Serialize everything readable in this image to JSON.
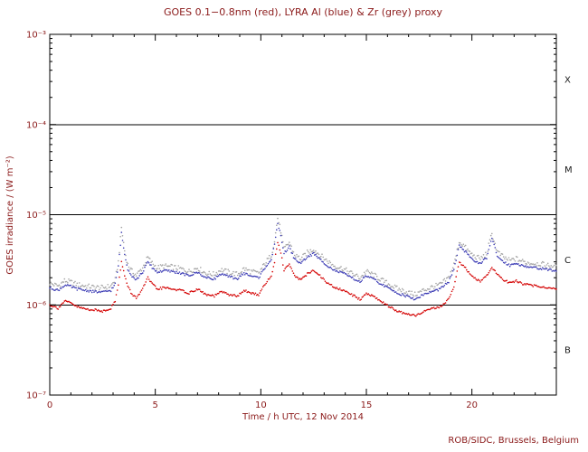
{
  "chart_data": {
    "type": "scatter",
    "title": "GOES 0.1−0.8nm (red), LYRA Al (blue) & Zr (grey) proxy",
    "xlabel": "Time / h UTC, 12 Nov 2014",
    "ylabel": "GOES irradiance / (W m⁻²)",
    "footer": "ROB/SIDC, Brussels, Belgium",
    "x_range": [
      0,
      24
    ],
    "y_range_exp": [
      -7,
      -3
    ],
    "x_major_ticks": [
      0,
      5,
      10,
      15,
      20
    ],
    "x_minor_step": 1,
    "y_ticks": [
      {
        "exp": -3,
        "label": "10⁻³"
      },
      {
        "exp": -4,
        "label": "10⁻⁴"
      },
      {
        "exp": -5,
        "label": "10⁻⁵"
      },
      {
        "exp": -6,
        "label": "10⁻⁶"
      },
      {
        "exp": -7,
        "label": "10⁻⁷"
      }
    ],
    "threshold_lines": [
      0.0001,
      1e-05,
      1e-06
    ],
    "flare_classes": [
      {
        "label": "X",
        "value": 0.000316
      },
      {
        "label": "M",
        "value": 3.16e-05
      },
      {
        "label": "C",
        "value": 3.16e-06
      },
      {
        "label": "B",
        "value": 3.16e-07
      }
    ],
    "grid": "off",
    "legend": "encoded-in-title",
    "colors": {
      "text": "#8b1a1a",
      "class_text": "#1a1a1a",
      "frame": "#000000",
      "goes_red": "#d40000",
      "lyra_al_blue": "#3a3ab4",
      "lyra_zr_grey": "#a3a3a3"
    },
    "series": [
      {
        "id": "goes",
        "name": "GOES 0.1−0.8nm",
        "color": "#d40000",
        "scatter": 0.012,
        "points": [
          [
            0.0,
            1e-06
          ],
          [
            0.4,
            9.2e-07
          ],
          [
            0.7,
            1.1e-06
          ],
          [
            1.0,
            1.05e-06
          ],
          [
            1.3,
            9.5e-07
          ],
          [
            1.7,
            9e-07
          ],
          [
            2.1,
            8.8e-07
          ],
          [
            2.5,
            8.5e-07
          ],
          [
            2.9,
            9.2e-07
          ],
          [
            3.1,
            1.1e-06
          ],
          [
            3.25,
            1.7e-06
          ],
          [
            3.4,
            3e-06
          ],
          [
            3.55,
            2.1e-06
          ],
          [
            3.7,
            1.6e-06
          ],
          [
            3.9,
            1.3e-06
          ],
          [
            4.1,
            1.2e-06
          ],
          [
            4.4,
            1.5e-06
          ],
          [
            4.65,
            2e-06
          ],
          [
            4.85,
            1.7e-06
          ],
          [
            5.1,
            1.5e-06
          ],
          [
            5.4,
            1.55e-06
          ],
          [
            5.8,
            1.5e-06
          ],
          [
            6.2,
            1.45e-06
          ],
          [
            6.6,
            1.35e-06
          ],
          [
            7.0,
            1.5e-06
          ],
          [
            7.4,
            1.3e-06
          ],
          [
            7.8,
            1.25e-06
          ],
          [
            8.1,
            1.4e-06
          ],
          [
            8.5,
            1.3e-06
          ],
          [
            8.9,
            1.25e-06
          ],
          [
            9.2,
            1.45e-06
          ],
          [
            9.5,
            1.35e-06
          ],
          [
            9.9,
            1.3e-06
          ],
          [
            10.2,
            1.7e-06
          ],
          [
            10.5,
            2.1e-06
          ],
          [
            10.65,
            3e-06
          ],
          [
            10.8,
            5e-06
          ],
          [
            10.95,
            3.8e-06
          ],
          [
            11.1,
            2.4e-06
          ],
          [
            11.35,
            2.9e-06
          ],
          [
            11.6,
            2.1e-06
          ],
          [
            11.9,
            1.9e-06
          ],
          [
            12.2,
            2.2e-06
          ],
          [
            12.5,
            2.4e-06
          ],
          [
            12.8,
            2.1e-06
          ],
          [
            13.1,
            1.8e-06
          ],
          [
            13.5,
            1.55e-06
          ],
          [
            13.9,
            1.45e-06
          ],
          [
            14.3,
            1.3e-06
          ],
          [
            14.7,
            1.15e-06
          ],
          [
            15.0,
            1.35e-06
          ],
          [
            15.3,
            1.25e-06
          ],
          [
            15.7,
            1.1e-06
          ],
          [
            16.1,
            9.5e-07
          ],
          [
            16.5,
            8.5e-07
          ],
          [
            16.9,
            7.8e-07
          ],
          [
            17.3,
            7.6e-07
          ],
          [
            17.7,
            8.4e-07
          ],
          [
            18.1,
            9e-07
          ],
          [
            18.5,
            9.6e-07
          ],
          [
            18.9,
            1.15e-06
          ],
          [
            19.15,
            1.6e-06
          ],
          [
            19.4,
            3e-06
          ],
          [
            19.6,
            2.7e-06
          ],
          [
            19.85,
            2.3e-06
          ],
          [
            20.1,
            2e-06
          ],
          [
            20.4,
            1.8e-06
          ],
          [
            20.7,
            2.1e-06
          ],
          [
            20.95,
            2.6e-06
          ],
          [
            21.2,
            2.2e-06
          ],
          [
            21.5,
            1.9e-06
          ],
          [
            21.8,
            1.75e-06
          ],
          [
            22.1,
            1.85e-06
          ],
          [
            22.45,
            1.7e-06
          ],
          [
            22.8,
            1.65e-06
          ],
          [
            23.2,
            1.6e-06
          ],
          [
            23.6,
            1.55e-06
          ],
          [
            24.0,
            1.5e-06
          ]
        ]
      },
      {
        "id": "lyra-al",
        "name": "LYRA Al proxy",
        "color": "#3a3ab4",
        "scatter": 0.013,
        "points": [
          [
            0.0,
            1.55e-06
          ],
          [
            0.4,
            1.45e-06
          ],
          [
            0.7,
            1.65e-06
          ],
          [
            1.0,
            1.6e-06
          ],
          [
            1.3,
            1.5e-06
          ],
          [
            1.7,
            1.45e-06
          ],
          [
            2.1,
            1.4e-06
          ],
          [
            2.5,
            1.38e-06
          ],
          [
            2.9,
            1.45e-06
          ],
          [
            3.1,
            1.7e-06
          ],
          [
            3.25,
            2.7e-06
          ],
          [
            3.4,
            6.2e-06
          ],
          [
            3.55,
            3.6e-06
          ],
          [
            3.7,
            2.5e-06
          ],
          [
            3.9,
            2.1e-06
          ],
          [
            4.1,
            1.9e-06
          ],
          [
            4.4,
            2.3e-06
          ],
          [
            4.65,
            3e-06
          ],
          [
            4.85,
            2.6e-06
          ],
          [
            5.1,
            2.3e-06
          ],
          [
            5.4,
            2.4e-06
          ],
          [
            5.8,
            2.35e-06
          ],
          [
            6.2,
            2.25e-06
          ],
          [
            6.6,
            2.1e-06
          ],
          [
            7.0,
            2.3e-06
          ],
          [
            7.4,
            2e-06
          ],
          [
            7.8,
            1.95e-06
          ],
          [
            8.1,
            2.2e-06
          ],
          [
            8.5,
            2.05e-06
          ],
          [
            8.9,
            1.95e-06
          ],
          [
            9.2,
            2.25e-06
          ],
          [
            9.5,
            2.1e-06
          ],
          [
            9.9,
            2e-06
          ],
          [
            10.2,
            2.6e-06
          ],
          [
            10.5,
            3.2e-06
          ],
          [
            10.65,
            4.6e-06
          ],
          [
            10.8,
            8e-06
          ],
          [
            10.95,
            5.9e-06
          ],
          [
            11.1,
            3.7e-06
          ],
          [
            11.35,
            4.4e-06
          ],
          [
            11.6,
            3.2e-06
          ],
          [
            11.9,
            2.9e-06
          ],
          [
            12.2,
            3.4e-06
          ],
          [
            12.5,
            3.7e-06
          ],
          [
            12.8,
            3.2e-06
          ],
          [
            13.1,
            2.8e-06
          ],
          [
            13.5,
            2.4e-06
          ],
          [
            13.9,
            2.25e-06
          ],
          [
            14.3,
            2e-06
          ],
          [
            14.7,
            1.8e-06
          ],
          [
            15.0,
            2.1e-06
          ],
          [
            15.3,
            1.95e-06
          ],
          [
            15.7,
            1.7e-06
          ],
          [
            16.1,
            1.5e-06
          ],
          [
            16.5,
            1.35e-06
          ],
          [
            16.9,
            1.25e-06
          ],
          [
            17.3,
            1.15e-06
          ],
          [
            17.7,
            1.3e-06
          ],
          [
            18.1,
            1.4e-06
          ],
          [
            18.5,
            1.5e-06
          ],
          [
            18.9,
            1.8e-06
          ],
          [
            19.15,
            2.5e-06
          ],
          [
            19.4,
            4.5e-06
          ],
          [
            19.6,
            4.1e-06
          ],
          [
            19.85,
            3.5e-06
          ],
          [
            20.1,
            3.1e-06
          ],
          [
            20.4,
            2.9e-06
          ],
          [
            20.7,
            3.3e-06
          ],
          [
            20.95,
            5.5e-06
          ],
          [
            21.2,
            3.5e-06
          ],
          [
            21.5,
            3e-06
          ],
          [
            21.8,
            2.75e-06
          ],
          [
            22.1,
            2.9e-06
          ],
          [
            22.45,
            2.7e-06
          ],
          [
            22.8,
            2.6e-06
          ],
          [
            23.2,
            2.55e-06
          ],
          [
            23.6,
            2.45e-06
          ],
          [
            24.0,
            2.4e-06
          ]
        ]
      },
      {
        "id": "lyra-zr",
        "name": "LYRA Zr proxy",
        "color": "#a3a3a3",
        "scatter": 0.028,
        "points": [
          [
            0.0,
            1.74e-06
          ],
          [
            0.4,
            1.62e-06
          ],
          [
            0.7,
            1.85e-06
          ],
          [
            1.0,
            1.79e-06
          ],
          [
            1.3,
            1.68e-06
          ],
          [
            1.7,
            1.62e-06
          ],
          [
            2.1,
            1.57e-06
          ],
          [
            2.5,
            1.55e-06
          ],
          [
            2.9,
            1.62e-06
          ],
          [
            3.1,
            1.9e-06
          ],
          [
            3.25,
            3e-06
          ],
          [
            3.4,
            7.2e-06
          ],
          [
            3.55,
            4e-06
          ],
          [
            3.7,
            2.8e-06
          ],
          [
            3.9,
            2.35e-06
          ],
          [
            4.1,
            2.13e-06
          ],
          [
            4.4,
            2.58e-06
          ],
          [
            4.65,
            3.36e-06
          ],
          [
            4.85,
            2.9e-06
          ],
          [
            5.1,
            2.58e-06
          ],
          [
            5.4,
            2.7e-06
          ],
          [
            5.8,
            2.63e-06
          ],
          [
            6.2,
            2.52e-06
          ],
          [
            6.6,
            2.35e-06
          ],
          [
            7.0,
            2.58e-06
          ],
          [
            7.4,
            2.24e-06
          ],
          [
            7.8,
            2.18e-06
          ],
          [
            8.1,
            2.46e-06
          ],
          [
            8.5,
            2.3e-06
          ],
          [
            8.9,
            2.18e-06
          ],
          [
            9.2,
            2.52e-06
          ],
          [
            9.5,
            2.35e-06
          ],
          [
            9.9,
            2.24e-06
          ],
          [
            10.2,
            2.9e-06
          ],
          [
            10.5,
            3.58e-06
          ],
          [
            10.65,
            5.15e-06
          ],
          [
            10.8,
            9.2e-06
          ],
          [
            10.95,
            6.6e-06
          ],
          [
            11.1,
            4.14e-06
          ],
          [
            11.35,
            4.93e-06
          ],
          [
            11.6,
            3.58e-06
          ],
          [
            11.9,
            3.25e-06
          ],
          [
            12.2,
            3.8e-06
          ],
          [
            12.5,
            4.14e-06
          ],
          [
            12.8,
            3.58e-06
          ],
          [
            13.1,
            3.14e-06
          ],
          [
            13.5,
            2.7e-06
          ],
          [
            13.9,
            2.52e-06
          ],
          [
            14.3,
            2.24e-06
          ],
          [
            14.7,
            2e-06
          ],
          [
            15.0,
            2.35e-06
          ],
          [
            15.3,
            2.18e-06
          ],
          [
            15.7,
            1.9e-06
          ],
          [
            16.1,
            1.68e-06
          ],
          [
            16.5,
            1.5e-06
          ],
          [
            16.9,
            1.4e-06
          ],
          [
            17.3,
            1.3e-06
          ],
          [
            17.7,
            1.45e-06
          ],
          [
            18.1,
            1.57e-06
          ],
          [
            18.5,
            1.68e-06
          ],
          [
            18.9,
            2e-06
          ],
          [
            19.15,
            2.8e-06
          ],
          [
            19.4,
            5e-06
          ],
          [
            19.6,
            4.6e-06
          ],
          [
            19.85,
            3.9e-06
          ],
          [
            20.1,
            3.47e-06
          ],
          [
            20.4,
            3.25e-06
          ],
          [
            20.7,
            3.7e-06
          ],
          [
            20.95,
            6.2e-06
          ],
          [
            21.2,
            3.9e-06
          ],
          [
            21.5,
            3.36e-06
          ],
          [
            21.8,
            3.1e-06
          ],
          [
            22.1,
            3.25e-06
          ],
          [
            22.45,
            3e-06
          ],
          [
            22.8,
            2.9e-06
          ],
          [
            23.2,
            2.86e-06
          ],
          [
            23.6,
            2.74e-06
          ],
          [
            24.0,
            2.7e-06
          ]
        ]
      }
    ]
  }
}
